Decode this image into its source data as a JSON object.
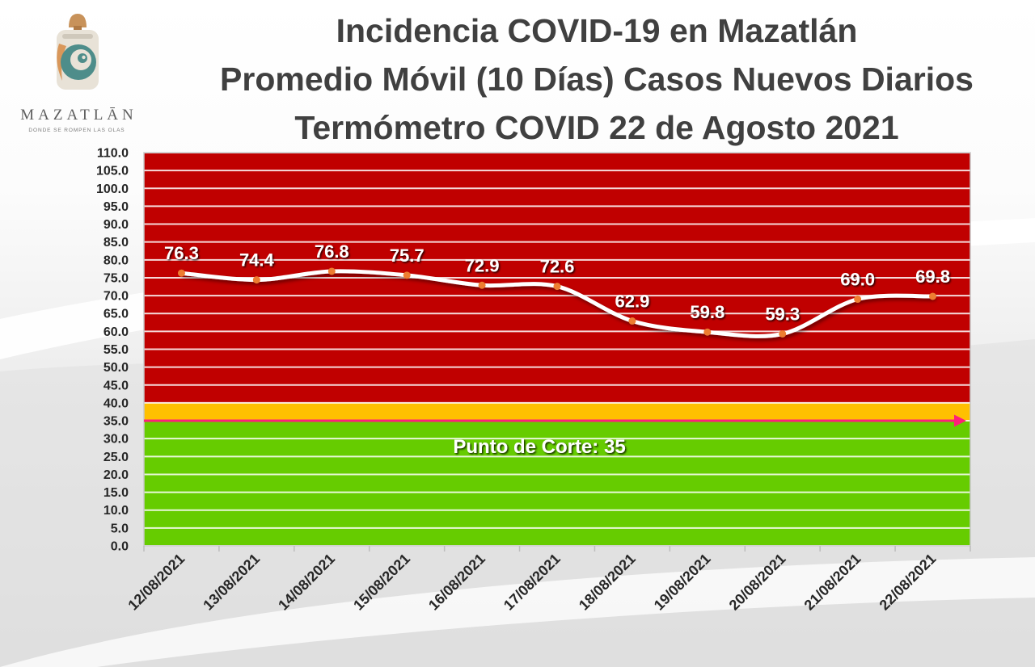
{
  "logo": {
    "icon": "mazatlan-wave-logo",
    "name": "MAZATLĀN",
    "tagline": "DONDE SE ROMPEN LAS OLAS"
  },
  "colors": {
    "title": "#404040",
    "axis_text": "#262626"
  },
  "chart_data": {
    "type": "line",
    "title": "Incidencia COVID-19 en Mazatlán",
    "subtitle": "Promedio Móvil (10 Días) Casos Nuevos Diarios",
    "subtitle_2": "Termómetro COVID 22 de Agosto 2021",
    "categories": [
      "12/08/2021",
      "13/08/2021",
      "14/08/2021",
      "15/08/2021",
      "16/08/2021",
      "17/08/2021",
      "18/08/2021",
      "19/08/2021",
      "20/08/2021",
      "21/08/2021",
      "22/08/2021"
    ],
    "values": [
      76.3,
      74.4,
      76.8,
      75.7,
      72.9,
      72.6,
      62.9,
      59.8,
      59.3,
      69.0,
      69.8
    ],
    "data_labels": [
      "76.3",
      "74.4",
      "76.8",
      "75.7",
      "72.9",
      "72.6",
      "62.9",
      "59.8",
      "59.3",
      "69.0",
      "69.8"
    ],
    "ylim": [
      0,
      110
    ],
    "ytick_step": 5,
    "ytick_labels": [
      "0.0",
      "5.0",
      "10.0",
      "15.0",
      "20.0",
      "25.0",
      "30.0",
      "35.0",
      "40.0",
      "45.0",
      "50.0",
      "55.0",
      "60.0",
      "65.0",
      "70.0",
      "75.0",
      "80.0",
      "85.0",
      "90.0",
      "95.0",
      "100.0",
      "105.0",
      "110.0"
    ],
    "grid": true,
    "bands": [
      {
        "from": 40,
        "to": 110,
        "color": "#c00000"
      },
      {
        "from": 35,
        "to": 40,
        "color": "#ffc000"
      },
      {
        "from": 0,
        "to": 35,
        "color": "#66cc00"
      }
    ],
    "threshold": {
      "value": 35,
      "label": "Punto de Corte: 35",
      "color": "#ff1f7a"
    },
    "line_color": "#ffffff",
    "marker_color": "#ed7d31"
  }
}
